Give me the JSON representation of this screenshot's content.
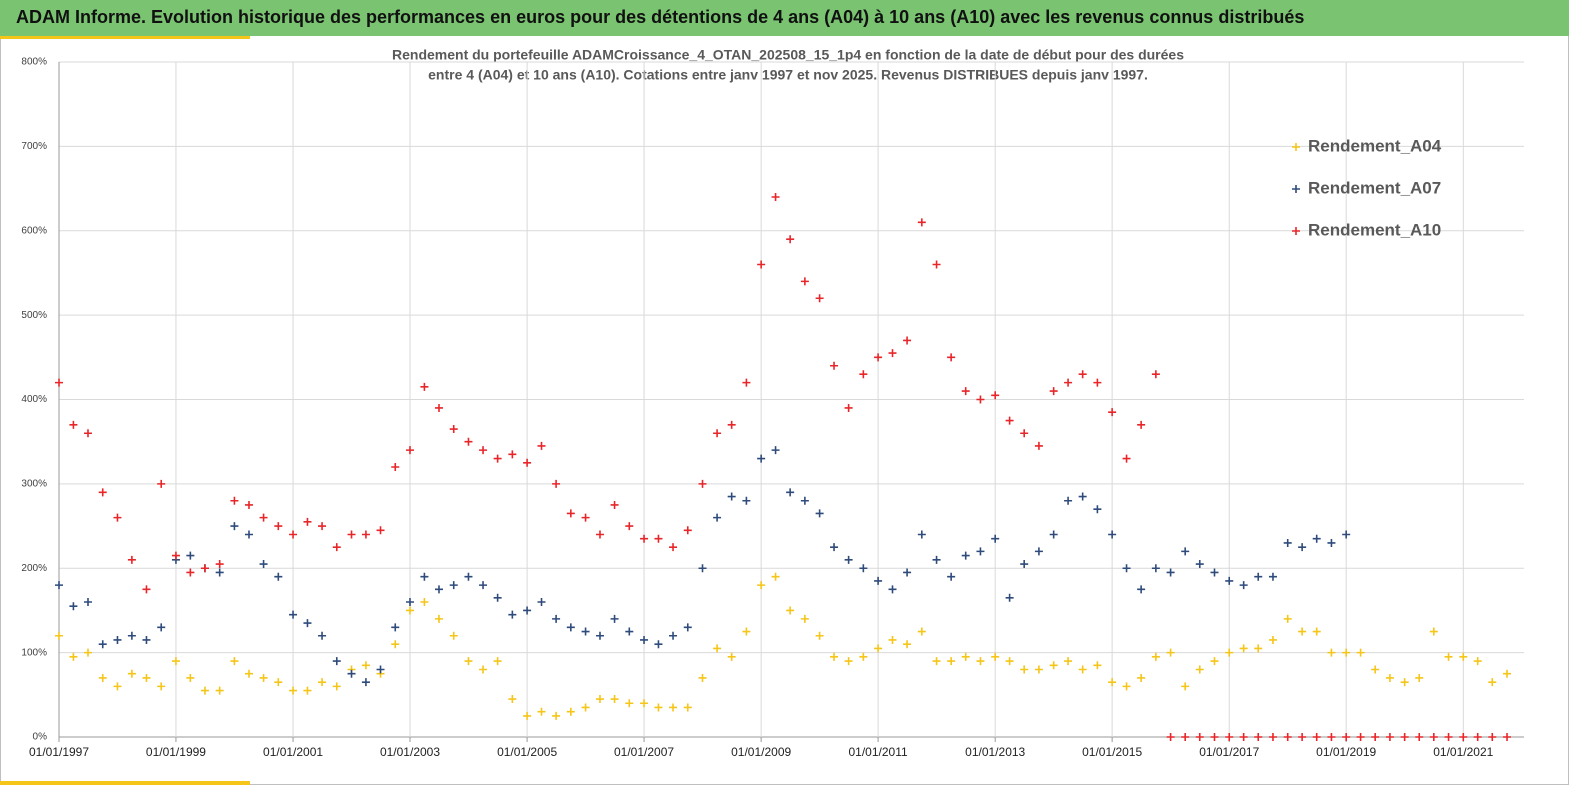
{
  "header": {
    "title": "ADAM Informe. Evolution historique des performances en euros pour des détentions de 4 ans (A04) à 10 ans (A10) avec les revenus connus distribués"
  },
  "chart_data": {
    "type": "scatter",
    "title": [
      "Rendement du portefeuille ADAMCroissance_4_OTAN_202508_15_1p4  en fonction de la date de début pour des durées",
      "entre 4 (A04) et 10 ans (A10). Cotations entre janv 1997 et nov 2025. Revenus DISTRIBUES depuis janv 1997."
    ],
    "x": [
      "01/01/1997",
      "01/04/1997",
      "01/07/1997",
      "01/10/1997",
      "01/01/1998",
      "01/04/1998",
      "01/07/1998",
      "01/10/1998",
      "01/01/1999",
      "01/04/1999",
      "01/07/1999",
      "01/10/1999",
      "01/01/2000",
      "01/04/2000",
      "01/07/2000",
      "01/10/2000",
      "01/01/2001",
      "01/04/2001",
      "01/07/2001",
      "01/10/2001",
      "01/01/2002",
      "01/04/2002",
      "01/07/2002",
      "01/10/2002",
      "01/01/2003",
      "01/04/2003",
      "01/07/2003",
      "01/10/2003",
      "01/01/2004",
      "01/04/2004",
      "01/07/2004",
      "01/10/2004",
      "01/01/2005",
      "01/04/2005",
      "01/07/2005",
      "01/10/2005",
      "01/01/2006",
      "01/04/2006",
      "01/07/2006",
      "01/10/2006",
      "01/01/2007",
      "01/04/2007",
      "01/07/2007",
      "01/10/2007",
      "01/01/2008",
      "01/04/2008",
      "01/07/2008",
      "01/10/2008",
      "01/01/2009",
      "01/04/2009",
      "01/07/2009",
      "01/10/2009",
      "01/01/2010",
      "01/04/2010",
      "01/07/2010",
      "01/10/2010",
      "01/01/2011",
      "01/04/2011",
      "01/07/2011",
      "01/10/2011",
      "01/01/2012",
      "01/04/2012",
      "01/07/2012",
      "01/10/2012",
      "01/01/2013",
      "01/04/2013",
      "01/07/2013",
      "01/10/2013",
      "01/01/2014",
      "01/04/2014",
      "01/07/2014",
      "01/10/2014",
      "01/01/2015",
      "01/04/2015",
      "01/07/2015",
      "01/10/2015",
      "01/01/2016",
      "01/04/2016",
      "01/07/2016",
      "01/10/2016",
      "01/01/2017",
      "01/04/2017",
      "01/07/2017",
      "01/10/2017",
      "01/01/2018",
      "01/04/2018",
      "01/07/2018",
      "01/10/2018",
      "01/01/2019",
      "01/04/2019",
      "01/07/2019",
      "01/10/2019",
      "01/01/2020",
      "01/04/2020",
      "01/07/2020",
      "01/10/2020",
      "01/01/2021",
      "01/04/2021",
      "01/07/2021",
      "01/10/2021"
    ],
    "series": [
      {
        "name": "Rendement_A04",
        "color": "#f5c518",
        "values": [
          120,
          95,
          100,
          70,
          60,
          75,
          70,
          60,
          90,
          70,
          55,
          55,
          90,
          75,
          70,
          65,
          55,
          55,
          65,
          60,
          80,
          85,
          75,
          110,
          150,
          160,
          140,
          120,
          90,
          80,
          90,
          45,
          25,
          30,
          25,
          30,
          35,
          45,
          45,
          40,
          40,
          35,
          35,
          35,
          70,
          105,
          95,
          125,
          180,
          190,
          150,
          140,
          120,
          95,
          90,
          95,
          105,
          115,
          110,
          125,
          90,
          90,
          95,
          90,
          95,
          90,
          80,
          80,
          85,
          90,
          80,
          85,
          65,
          60,
          70,
          95,
          100,
          60,
          80,
          90,
          100,
          105,
          105,
          115,
          140,
          125,
          125,
          100,
          100,
          100,
          80,
          70,
          65,
          70,
          125,
          95,
          95,
          90,
          65,
          75
        ]
      },
      {
        "name": "Rendement_A07",
        "color": "#2f4b7c",
        "values": [
          180,
          155,
          160,
          110,
          115,
          120,
          115,
          130,
          210,
          215,
          200,
          195,
          250,
          240,
          205,
          190,
          145,
          135,
          120,
          90,
          75,
          65,
          80,
          130,
          160,
          190,
          175,
          180,
          190,
          180,
          165,
          145,
          150,
          160,
          140,
          130,
          125,
          120,
          140,
          125,
          115,
          110,
          120,
          130,
          200,
          260,
          285,
          280,
          330,
          340,
          290,
          280,
          265,
          225,
          210,
          200,
          185,
          175,
          195,
          240,
          210,
          190,
          215,
          220,
          235,
          165,
          205,
          220,
          240,
          280,
          285,
          270,
          240,
          200,
          175,
          200,
          195,
          220,
          205,
          195,
          185,
          180,
          190,
          190,
          230,
          225,
          235,
          230,
          240,
          null,
          null,
          null,
          null,
          null,
          null,
          null,
          null,
          null,
          null,
          null
        ]
      },
      {
        "name": "Rendement_A10",
        "color": "#e8262a",
        "values": [
          420,
          370,
          360,
          290,
          260,
          210,
          175,
          300,
          215,
          195,
          200,
          205,
          280,
          275,
          260,
          250,
          240,
          255,
          250,
          225,
          240,
          240,
          245,
          320,
          340,
          415,
          390,
          365,
          350,
          340,
          330,
          335,
          325,
          345,
          300,
          265,
          260,
          240,
          275,
          250,
          235,
          235,
          225,
          245,
          300,
          360,
          370,
          420,
          560,
          640,
          590,
          540,
          520,
          440,
          390,
          430,
          450,
          455,
          470,
          610,
          560,
          450,
          410,
          400,
          405,
          375,
          360,
          345,
          410,
          420,
          430,
          420,
          385,
          330,
          370,
          430,
          0,
          0,
          0,
          0,
          0,
          0,
          0,
          0,
          0,
          0,
          0,
          0,
          0,
          0,
          0,
          0,
          0,
          0,
          0,
          0,
          0,
          0,
          0,
          0
        ]
      }
    ],
    "xlim": [
      "01/01/1997",
      "15/01/2022"
    ],
    "xticks": [
      "01/01/1997",
      "01/01/1999",
      "01/01/2001",
      "01/01/2003",
      "01/01/2005",
      "01/01/2007",
      "01/01/2009",
      "01/01/2011",
      "01/01/2013",
      "01/01/2015",
      "01/01/2017",
      "01/01/2019",
      "01/01/2021"
    ],
    "ylim": [
      0,
      800
    ],
    "yticks": [
      {
        "value": 0,
        "label": "0%"
      },
      {
        "value": 100,
        "label": "100%"
      },
      {
        "value": 200,
        "label": "200%"
      },
      {
        "value": 300,
        "label": "300%"
      },
      {
        "value": 400,
        "label": "400%"
      },
      {
        "value": 500,
        "label": "500%"
      },
      {
        "value": 600,
        "label": "600%"
      },
      {
        "value": 700,
        "label": "700%"
      },
      {
        "value": 800,
        "label": "800%"
      }
    ],
    "grid": true,
    "legend": "top-right"
  }
}
